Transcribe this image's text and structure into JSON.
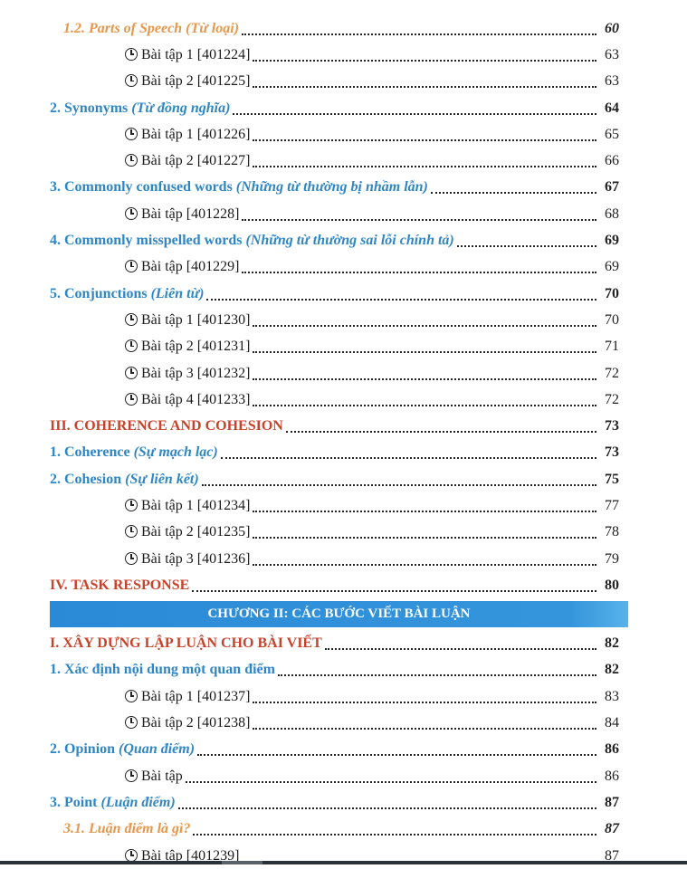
{
  "entries_a": [
    {
      "type": "sub",
      "title": "1.2. Parts of Speech",
      "subtitle": "(Từ loại)",
      "page": "60"
    },
    {
      "type": "ex",
      "title": "Bài tập 1 [401224]",
      "page": "63"
    },
    {
      "type": "ex",
      "title": "Bài tập 2 [401225]",
      "page": "63"
    },
    {
      "type": "main",
      "title": "2. Synonyms",
      "subtitle": "(Từ đồng nghĩa)",
      "page": "64"
    },
    {
      "type": "ex",
      "title": "Bài tập 1 [401226]",
      "page": "65"
    },
    {
      "type": "ex",
      "title": "Bài tập 2 [401227]",
      "page": "66"
    },
    {
      "type": "main",
      "title": "3. Commonly confused words",
      "subtitle": "(Những từ thường bị nhầm lẫn)",
      "page": "67"
    },
    {
      "type": "ex",
      "title": "Bài tập [401228]",
      "page": "68"
    },
    {
      "type": "main",
      "title": "4. Commonly misspelled words",
      "subtitle": "(Những từ thường sai lỗi chính tả)",
      "page": "69"
    },
    {
      "type": "ex",
      "title": "Bài tập [401229]",
      "page": "69"
    },
    {
      "type": "main",
      "title": "5. Conjunctions",
      "subtitle": "(Liên từ)",
      "page": "70"
    },
    {
      "type": "ex",
      "title": "Bài tập 1 [401230]",
      "page": "70"
    },
    {
      "type": "ex",
      "title": "Bài tập 2 [401231]",
      "page": "71"
    },
    {
      "type": "ex",
      "title": "Bài tập 3 [401232]",
      "page": "72"
    },
    {
      "type": "ex",
      "title": "Bài tập 4 [401233]",
      "page": "72"
    },
    {
      "type": "section",
      "title": "III. COHERENCE AND COHESION",
      "page": "73"
    },
    {
      "type": "main",
      "title": "1. Coherence",
      "subtitle": "(Sự mạch lạc)",
      "page": "73"
    },
    {
      "type": "main",
      "title": "2. Cohesion",
      "subtitle": "(Sự liên kết)",
      "page": "75"
    },
    {
      "type": "ex",
      "title": "Bài tập 1 [401234]",
      "page": "77"
    },
    {
      "type": "ex",
      "title": "Bài tập 2 [401235]",
      "page": "78"
    },
    {
      "type": "ex",
      "title": "Bài tập 3 [401236]",
      "page": "79"
    },
    {
      "type": "section",
      "title": "IV. TASK RESPONSE",
      "page": "80"
    }
  ],
  "chapter_banner": "CHƯƠNG II: CÁC BƯỚC VIẾT BÀI LUẬN",
  "entries_b": [
    {
      "type": "section",
      "title": "I. XÂY DỰNG LẬP LUẬN CHO BÀI VIẾT",
      "page": "82"
    },
    {
      "type": "main",
      "title": "1. Xác định nội dung một quan điểm",
      "page": "82"
    },
    {
      "type": "ex",
      "title": "Bài tập 1 [401237]",
      "page": "83"
    },
    {
      "type": "ex",
      "title": "Bài tập 2 [401238]",
      "page": "84"
    },
    {
      "type": "main",
      "title": "2. Opinion",
      "subtitle": "(Quan điểm)",
      "page": "86"
    },
    {
      "type": "ex",
      "title": "Bài tập",
      "page": "86"
    },
    {
      "type": "main",
      "title": "3. Point",
      "subtitle": "(Luận điểm)",
      "page": "87"
    },
    {
      "type": "sub",
      "title": "3.1. Luận điểm là gì?",
      "page": "87"
    },
    {
      "type": "ex",
      "title": "Bài tập [401239]",
      "page": "87"
    }
  ],
  "icons": {
    "exercise": "clock-icon"
  },
  "colors": {
    "section": "#c8432b",
    "main": "#2f86c4",
    "sub": "#e8964a",
    "banner": "#2b8ad6"
  }
}
